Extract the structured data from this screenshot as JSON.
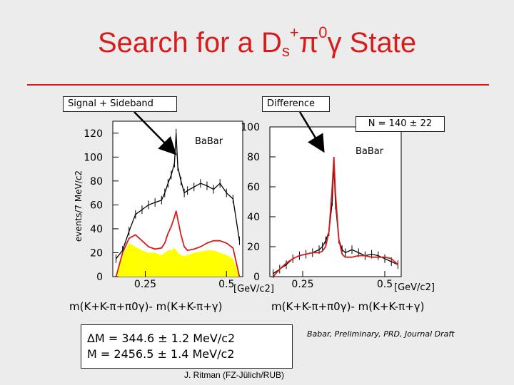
{
  "slide": {
    "title_main": "Search for a D",
    "title_sub": "s",
    "title_sup": "+",
    "title_tail_pi": "π",
    "title_tail_sup0": "0",
    "title_tail_rest": "γ State",
    "label_signal": "Signal + Sideband",
    "label_difference": "Difference",
    "label_n": "N = 140 ± 22",
    "unit_left": "[GeV/c2]",
    "unit_right": "[GeV/c2]",
    "xlabel_left": "m(K+K-π+π0γ)- m(K+K-π+γ)",
    "xlabel_right": "m(K+K-π+π0γ)- m(K+K-π+γ)",
    "result_line1": "ΔM = 344.6 ± 1.2 MeV/c2",
    "result_line2": "M = 2456.5 ± 1.4 MeV/c2",
    "citation": "Babar, Preliminary, PRD, Journal Draft",
    "author": "J. Ritman (FZ-Jülich/RUB)"
  },
  "chart_data": [
    {
      "type": "line",
      "panel": "Signal + Sideband",
      "watermark": "BaBar",
      "ylabel": "events/7 MeV/c2",
      "ylim": [
        0,
        130
      ],
      "xlim": [
        0.15,
        0.55
      ],
      "yticks": [
        0,
        20,
        40,
        60,
        80,
        100,
        120
      ],
      "xticks": [
        0.25,
        0.5
      ],
      "xtick_labels": [
        "0.25",
        "0.5"
      ],
      "x": [
        0.16,
        0.18,
        0.2,
        0.22,
        0.24,
        0.26,
        0.28,
        0.3,
        0.31,
        0.32,
        0.33,
        0.34,
        0.345,
        0.35,
        0.36,
        0.37,
        0.38,
        0.4,
        0.42,
        0.44,
        0.46,
        0.48,
        0.5,
        0.52,
        0.54
      ],
      "series": [
        {
          "name": "",
          "color": "#000000",
          "values": [
            15,
            22,
            38,
            52,
            56,
            60,
            62,
            64,
            70,
            78,
            85,
            95,
            120,
            92,
            80,
            70,
            72,
            75,
            78,
            76,
            73,
            78,
            70,
            65,
            30
          ]
        },
        {
          "name": "",
          "color": "#d81c1c",
          "values": [
            0,
            20,
            32,
            35,
            30,
            25,
            23,
            24,
            28,
            36,
            42,
            50,
            55,
            48,
            35,
            25,
            22,
            23,
            25,
            28,
            30,
            30,
            28,
            24,
            0
          ]
        },
        {
          "name": "",
          "color": "#ffff00",
          "fill": true,
          "values": [
            0,
            18,
            28,
            25,
            22,
            20,
            20,
            18,
            20,
            22,
            22,
            24,
            22,
            20,
            18,
            17,
            18,
            20,
            21,
            22,
            22,
            20,
            18,
            15,
            0
          ]
        }
      ]
    },
    {
      "type": "line",
      "panel": "Difference",
      "watermark": "BaBar",
      "ylim": [
        0,
        100
      ],
      "xlim": [
        0.15,
        0.55
      ],
      "yticks": [
        0,
        20,
        40,
        60,
        80,
        100
      ],
      "xticks": [
        0.25,
        0.5
      ],
      "xtick_labels": [
        "0.25",
        "0.5"
      ],
      "x": [
        0.16,
        0.18,
        0.2,
        0.22,
        0.24,
        0.26,
        0.28,
        0.3,
        0.31,
        0.32,
        0.33,
        0.34,
        0.345,
        0.35,
        0.36,
        0.37,
        0.38,
        0.4,
        0.42,
        0.44,
        0.46,
        0.48,
        0.5,
        0.52,
        0.54
      ],
      "series": [
        {
          "name": "",
          "color": "#000000",
          "values": [
            2,
            5,
            8,
            12,
            14,
            15,
            16,
            18,
            20,
            24,
            30,
            50,
            75,
            48,
            25,
            18,
            16,
            18,
            16,
            14,
            15,
            14,
            12,
            10,
            8
          ]
        },
        {
          "name": "",
          "color": "#d81c1c",
          "values": [
            0,
            5,
            9,
            12,
            14,
            15,
            16,
            16,
            17,
            20,
            30,
            60,
            80,
            55,
            25,
            15,
            13,
            13,
            14,
            14,
            13,
            13,
            13,
            12,
            8
          ]
        }
      ]
    }
  ]
}
